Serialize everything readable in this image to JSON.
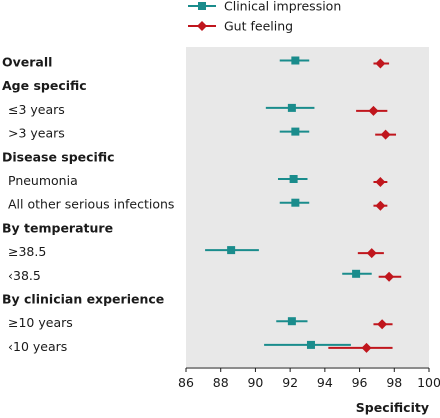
{
  "chart_data": {
    "type": "forest",
    "xlabel": "Specificity",
    "xlim": [
      86,
      100
    ],
    "xticks": [
      "86",
      "88",
      "90",
      "92",
      "94",
      "96",
      "98",
      "100"
    ],
    "legend": {
      "placement": "top",
      "entries": [
        {
          "name": "Clinical impression",
          "color": "#1a8c8c",
          "marker": "square"
        },
        {
          "name": "Gut feeling",
          "color": "#c0161d",
          "marker": "diamond"
        }
      ]
    },
    "rows": [
      {
        "label": "Overall",
        "header": true,
        "clinical": {
          "est": 92.3,
          "lo": 91.4,
          "hi": 93.1
        },
        "gut": {
          "est": 97.2,
          "lo": 96.8,
          "hi": 97.7
        }
      },
      {
        "label": "Age specific",
        "header": true
      },
      {
        "label": "≤3 years",
        "header": false,
        "clinical": {
          "est": 92.1,
          "lo": 90.6,
          "hi": 93.4
        },
        "gut": {
          "est": 96.8,
          "lo": 95.8,
          "hi": 97.6
        }
      },
      {
        "label": ">3 years",
        "header": false,
        "clinical": {
          "est": 92.3,
          "lo": 91.4,
          "hi": 93.1
        },
        "gut": {
          "est": 97.5,
          "lo": 96.9,
          "hi": 98.1
        }
      },
      {
        "label": "Disease specific",
        "header": true
      },
      {
        "label": "Pneumonia",
        "header": false,
        "clinical": {
          "est": 92.2,
          "lo": 91.3,
          "hi": 93.0
        },
        "gut": {
          "est": 97.2,
          "lo": 96.8,
          "hi": 97.6
        }
      },
      {
        "label": "All other serious infections",
        "header": false,
        "clinical": {
          "est": 92.3,
          "lo": 91.4,
          "hi": 93.1
        },
        "gut": {
          "est": 97.2,
          "lo": 96.8,
          "hi": 97.6
        }
      },
      {
        "label": "By temperature",
        "header": true
      },
      {
        "label": "≥38.5",
        "header": false,
        "clinical": {
          "est": 88.6,
          "lo": 87.1,
          "hi": 90.2
        },
        "gut": {
          "est": 96.7,
          "lo": 95.9,
          "hi": 97.4
        }
      },
      {
        "label": "‹38.5",
        "header": false,
        "clinical": {
          "est": 95.8,
          "lo": 95.0,
          "hi": 96.7
        },
        "gut": {
          "est": 97.7,
          "lo": 97.1,
          "hi": 98.4
        }
      },
      {
        "label": "By clinician experience",
        "header": true
      },
      {
        "label": "≥10 years",
        "header": false,
        "clinical": {
          "est": 92.1,
          "lo": 91.2,
          "hi": 93.0
        },
        "gut": {
          "est": 97.3,
          "lo": 96.8,
          "hi": 97.9
        }
      },
      {
        "label": "‹10 years",
        "header": false,
        "clinical": {
          "est": 93.2,
          "lo": 90.5,
          "hi": 95.5
        },
        "gut": {
          "est": 96.4,
          "lo": 94.2,
          "hi": 97.9
        }
      }
    ]
  }
}
